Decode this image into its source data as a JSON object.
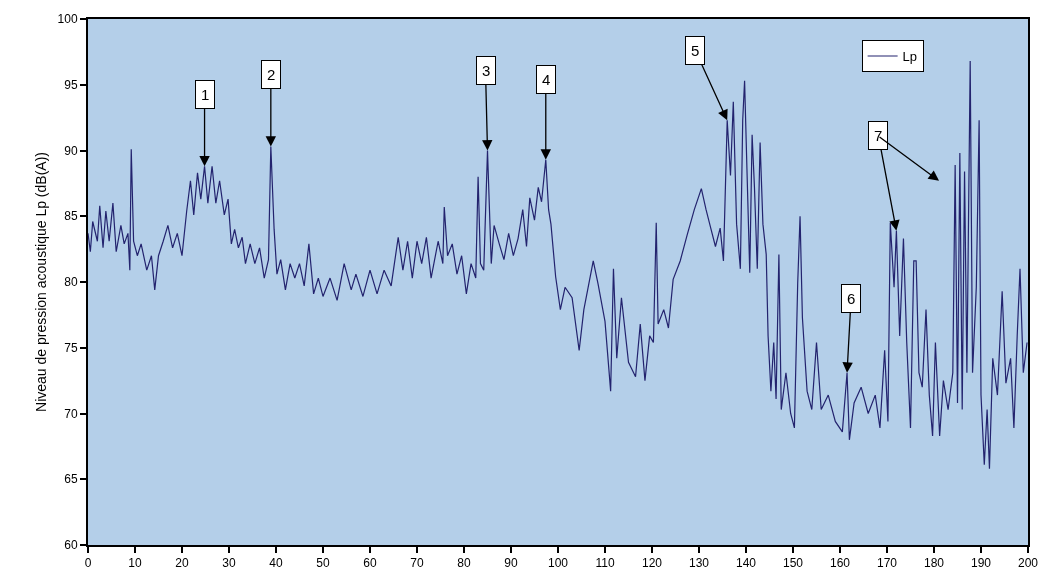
{
  "chart_data": {
    "type": "line",
    "ylabel": "Niveau de pression acoustique Lp (dB(A))",
    "xlim": [
      0,
      200
    ],
    "xticks": [
      0,
      10,
      20,
      30,
      40,
      50,
      60,
      70,
      80,
      90,
      100,
      110,
      120,
      130,
      140,
      150,
      160,
      170,
      180,
      190,
      200
    ],
    "ylim": [
      60,
      100
    ],
    "yticks": [
      60,
      65,
      70,
      75,
      80,
      85,
      90,
      95,
      100
    ],
    "legend": "top right",
    "x": [
      0,
      0.5,
      1,
      2,
      2.5,
      3.2,
      3.8,
      4.5,
      5.3,
      6,
      7,
      7.7,
      8.5,
      8.9,
      9.2,
      9.7,
      10.5,
      11.3,
      12.5,
      13.5,
      14.2,
      15,
      16,
      17,
      18,
      19,
      20,
      21,
      21.8,
      22.5,
      23.3,
      24,
      24.8,
      25.5,
      26.4,
      27.2,
      28,
      29,
      29.8,
      30.5,
      31.2,
      32,
      32.8,
      33.5,
      34.5,
      35.5,
      36.5,
      37.5,
      38.4,
      38.9,
      39.6,
      40.2,
      41,
      42,
      43,
      44,
      45,
      46,
      47,
      48,
      49,
      50,
      51.5,
      53,
      54.5,
      56,
      57,
      58.5,
      60,
      61.5,
      63,
      64.5,
      66,
      67,
      68,
      69,
      70,
      71,
      72,
      73,
      74.5,
      75.5,
      75.8,
      76.5,
      77.5,
      78.5,
      79.5,
      80.5,
      81.5,
      82.5,
      83,
      83.5,
      84.2,
      85,
      85.8,
      86.4,
      87.5,
      88.5,
      89.5,
      90.5,
      91.5,
      92.5,
      93.3,
      94,
      95,
      95.8,
      96.5,
      97.4,
      98,
      98.5,
      99.5,
      100.5,
      101.5,
      103,
      104.5,
      105.5,
      107.5,
      108.5,
      110,
      111.2,
      111.8,
      112.5,
      113.5,
      115,
      116.5,
      117.5,
      118.5,
      119.5,
      120.3,
      120.9,
      121.3,
      122.5,
      123.5,
      124.5,
      126,
      127.5,
      129,
      130.5,
      131.5,
      132.5,
      133.5,
      134.5,
      135.2,
      136,
      136.7,
      137.3,
      138,
      138.8,
      139.3,
      139.7,
      140.2,
      140.8,
      141.3,
      141.8,
      142.4,
      143,
      143.6,
      144.3,
      144.7,
      145.3,
      145.9,
      146.4,
      147,
      147.5,
      148.5,
      149.5,
      150.3,
      151,
      151.5,
      152,
      153,
      154,
      155,
      156,
      157.5,
      159,
      160.5,
      161.5,
      162,
      163,
      164.5,
      166,
      167.5,
      168.5,
      169.5,
      170.2,
      170.7,
      171.5,
      172,
      172.7,
      173.5,
      174.2,
      175,
      175.7,
      176.2,
      176.8,
      177.5,
      178.3,
      179,
      179.7,
      180.3,
      181.2,
      182,
      183,
      184,
      184.5,
      185,
      185.5,
      186,
      186.5,
      187,
      187.7,
      188.2,
      189,
      189.6,
      190,
      190.7,
      191.3,
      191.8,
      192.5,
      193.5,
      194.5,
      195.3,
      196.3,
      197,
      197.7,
      198.3,
      199,
      199.8
    ],
    "series": [
      {
        "name": "Lp",
        "color": "#23236e",
        "values": [
          83.7,
          82.3,
          84.6,
          83.1,
          85.8,
          82.6,
          85.4,
          83.1,
          86.0,
          82.3,
          84.3,
          82.9,
          83.7,
          80.9,
          90.1,
          83.1,
          82.0,
          82.9,
          80.9,
          82.0,
          79.4,
          82.0,
          83.1,
          84.3,
          82.6,
          83.7,
          82.0,
          85.4,
          87.7,
          85.1,
          88.3,
          86.3,
          88.8,
          86.0,
          88.8,
          86.0,
          87.7,
          85.1,
          86.3,
          82.9,
          84.0,
          82.6,
          83.4,
          81.4,
          82.9,
          81.4,
          82.6,
          80.3,
          81.7,
          90.3,
          84.0,
          80.6,
          81.7,
          79.4,
          81.4,
          80.3,
          81.4,
          79.7,
          82.9,
          79.1,
          80.3,
          78.9,
          80.3,
          78.6,
          81.4,
          79.4,
          80.6,
          78.9,
          80.9,
          79.1,
          80.9,
          79.7,
          83.4,
          80.9,
          83.1,
          80.3,
          83.1,
          81.4,
          83.4,
          80.3,
          83.1,
          81.4,
          85.7,
          82.0,
          82.9,
          80.6,
          82.0,
          79.1,
          81.4,
          80.3,
          88.0,
          81.4,
          80.9,
          90.0,
          81.4,
          84.3,
          82.9,
          81.7,
          83.7,
          82.0,
          83.3,
          85.5,
          82.7,
          86.4,
          84.7,
          87.2,
          86.1,
          89.3,
          85.5,
          84.4,
          80.4,
          77.9,
          79.6,
          78.8,
          74.8,
          77.9,
          81.6,
          79.9,
          77.0,
          71.7,
          81.0,
          74.2,
          78.8,
          73.9,
          72.8,
          76.8,
          72.5,
          75.9,
          75.4,
          84.5,
          76.8,
          77.9,
          76.5,
          80.2,
          81.6,
          83.6,
          85.5,
          87.1,
          85.5,
          84.1,
          82.7,
          84.1,
          81.6,
          92.3,
          88.1,
          93.7,
          84.4,
          81.0,
          92.3,
          95.3,
          88.6,
          80.7,
          91.2,
          87.2,
          81.0,
          90.6,
          84.4,
          82.1,
          75.9,
          71.7,
          75.4,
          71.1,
          82.1,
          70.3,
          73.1,
          70.0,
          68.9,
          79.9,
          85.0,
          77.3,
          71.7,
          70.3,
          75.4,
          70.3,
          71.4,
          69.4,
          68.6,
          73.1,
          68.0,
          70.8,
          72.0,
          70.0,
          71.4,
          68.9,
          74.8,
          69.4,
          84.5,
          79.6,
          83.9,
          75.9,
          83.3,
          75.4,
          68.9,
          81.6,
          81.6,
          73.1,
          72.0,
          77.9,
          71.4,
          68.3,
          75.4,
          68.3,
          72.5,
          70.3,
          73.1,
          88.9,
          70.8,
          89.8,
          70.3,
          88.4,
          73.1,
          96.8,
          73.1,
          79.6,
          92.3,
          71.4,
          66.1,
          70.3,
          65.8,
          74.2,
          71.4,
          79.3,
          72.3,
          74.2,
          68.9,
          75.9,
          81.0,
          73.1,
          75.4
        ]
      }
    ],
    "annotations": [
      {
        "text": "1",
        "x": 24.8,
        "y": 88.8
      },
      {
        "text": "2",
        "x": 38.9,
        "y": 90.3
      },
      {
        "text": "3",
        "x": 85,
        "y": 90.0
      },
      {
        "text": "4",
        "x": 97.4,
        "y": 89.3
      },
      {
        "text": "5",
        "x": 136,
        "y": 92.3
      },
      {
        "text": "6",
        "x": 161.5,
        "y": 73.1
      },
      {
        "text": "7",
        "x": 172,
        "y": 83.9
      }
    ]
  }
}
